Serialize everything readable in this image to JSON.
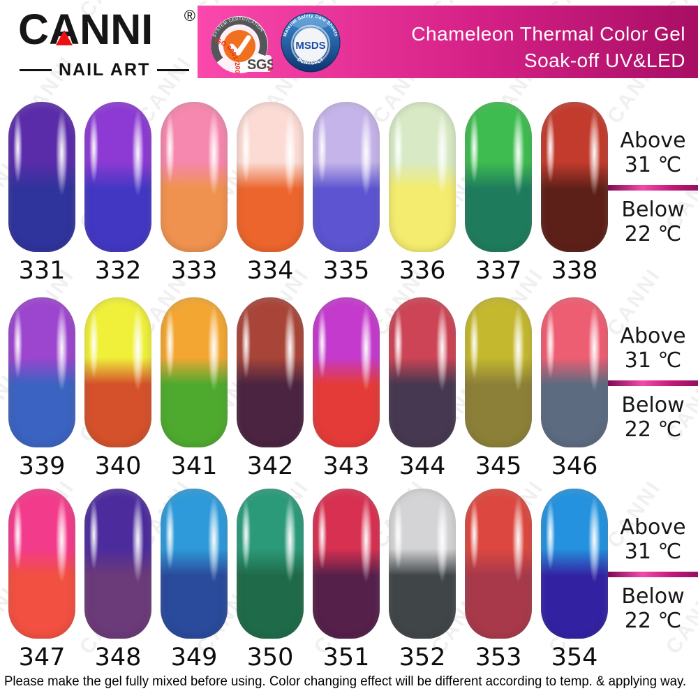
{
  "header": {
    "brand": "CANNI",
    "registered_mark": "®",
    "brand_sub": "NAIL ART",
    "title_line1": "Chameleon Thermal Color Gel",
    "title_line2": "Soak-off UV&LED",
    "banner_colors": {
      "left": "#FA48AC",
      "right": "#A80E64"
    },
    "badges": {
      "sgs": {
        "arc_text": "SYSTEM CERTIFICATION",
        "iso_text": "ISO 9001:2000",
        "label": "SGS"
      },
      "msds": {
        "arc_text": "Material Safety Data Sheets",
        "label": "MSDS",
        "bottom_text": "DENTSPLY"
      }
    }
  },
  "temperature_labels": {
    "above_line1": "Above",
    "above_line2": "31 ℃",
    "below_line1": "Below",
    "below_line2": "22 ℃"
  },
  "rows": [
    {
      "swatches": [
        {
          "code": "331",
          "top_color": "#5A2CAA",
          "bottom_color": "#2F339C"
        },
        {
          "code": "332",
          "top_color": "#8C3AD3",
          "bottom_color": "#4237C3"
        },
        {
          "code": "333",
          "top_color": "#F687AE",
          "bottom_color": "#F0924F"
        },
        {
          "code": "334",
          "top_color": "#FBDBD4",
          "bottom_color": "#EC652C"
        },
        {
          "code": "335",
          "top_color": "#C5B4E9",
          "bottom_color": "#5C54D0"
        },
        {
          "code": "336",
          "top_color": "#D8EAC5",
          "bottom_color": "#F4EC6E"
        },
        {
          "code": "337",
          "top_color": "#3EBC4F",
          "bottom_color": "#1E7C5D"
        },
        {
          "code": "338",
          "top_color": "#C23B2D",
          "bottom_color": "#5D2019"
        }
      ]
    },
    {
      "swatches": [
        {
          "code": "339",
          "top_color": "#9C45CE",
          "bottom_color": "#3B63C1"
        },
        {
          "code": "340",
          "top_color": "#F0F03A",
          "bottom_color": "#D4512B"
        },
        {
          "code": "341",
          "top_color": "#F3A732",
          "bottom_color": "#4EAA2E"
        },
        {
          "code": "342",
          "top_color": "#A84538",
          "bottom_color": "#4A2441"
        },
        {
          "code": "343",
          "top_color": "#C43ACD",
          "bottom_color": "#E43B39"
        },
        {
          "code": "344",
          "top_color": "#CC4455",
          "bottom_color": "#463850"
        },
        {
          "code": "345",
          "top_color": "#C4B82E",
          "bottom_color": "#8C8038"
        },
        {
          "code": "346",
          "top_color": "#EE5E72",
          "bottom_color": "#5C6B80"
        }
      ]
    },
    {
      "swatches": [
        {
          "code": "347",
          "top_color": "#F33B8B",
          "bottom_color": "#F25041"
        },
        {
          "code": "348",
          "top_color": "#4C2C9D",
          "bottom_color": "#6B3A79"
        },
        {
          "code": "349",
          "top_color": "#2E9AD9",
          "bottom_color": "#2A4A9B"
        },
        {
          "code": "350",
          "top_color": "#2B9A79",
          "bottom_color": "#1F6B49"
        },
        {
          "code": "351",
          "top_color": "#D83050",
          "bottom_color": "#55204A"
        },
        {
          "code": "352",
          "top_color": "#D4D4D6",
          "bottom_color": "#404648"
        },
        {
          "code": "353",
          "top_color": "#DC4840",
          "bottom_color": "#A8394A"
        },
        {
          "code": "354",
          "top_color": "#2492DE",
          "bottom_color": "#3222A2"
        }
      ]
    }
  ],
  "footer": {
    "note": "Please make the gel fully mixed before using. Color changing effect will be different  according to temp. & applying way."
  },
  "watermark": {
    "text": "CANNI"
  }
}
